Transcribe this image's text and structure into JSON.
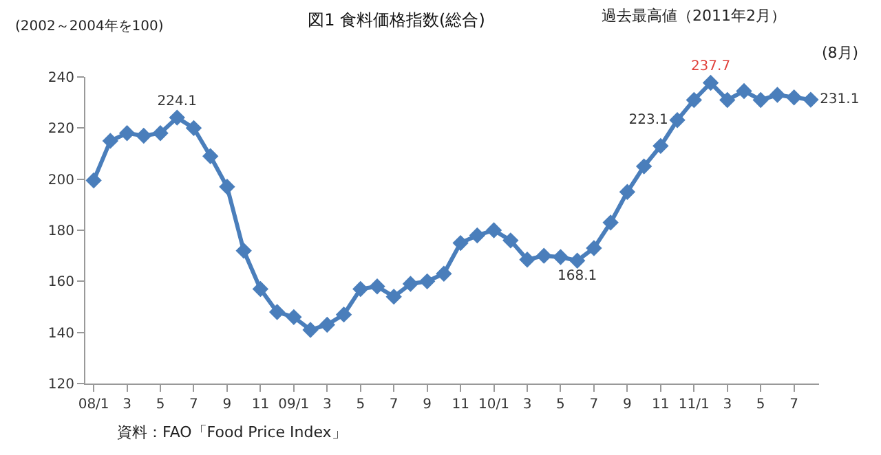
{
  "chart_data": {
    "type": "line",
    "title": "図1 食料価格指数(総合)",
    "ylabel": "(2002～2004年を100)",
    "categories": [
      "08/1",
      null,
      "3",
      null,
      "5",
      null,
      "7",
      null,
      "9",
      null,
      "11",
      null,
      "09/1",
      null,
      "3",
      null,
      "5",
      null,
      "7",
      null,
      "9",
      null,
      "11",
      null,
      "10/1",
      null,
      "3",
      null,
      "5",
      null,
      "7",
      null,
      "9",
      null,
      "11",
      null,
      "11/1",
      null,
      "3",
      null,
      "5",
      null,
      "7",
      null
    ],
    "series": [
      {
        "color": "#4a7ebb",
        "values": [
          199.5,
          215,
          218,
          217,
          218,
          224.1,
          220,
          209,
          197,
          172,
          157,
          148,
          146,
          141,
          143,
          147,
          157,
          158,
          154,
          159,
          160,
          163,
          175,
          178,
          180,
          176,
          168.5,
          170,
          169.5,
          168.1,
          173,
          183,
          195,
          205,
          213,
          223.1,
          231,
          237.7,
          231,
          234.5,
          231,
          233,
          232,
          231.1
        ],
        "value_labels": [
          null,
          null,
          null,
          null,
          null,
          "224.1",
          null,
          null,
          null,
          null,
          null,
          null,
          null,
          null,
          null,
          null,
          null,
          null,
          null,
          null,
          null,
          null,
          null,
          null,
          null,
          null,
          null,
          null,
          null,
          "168.1",
          null,
          null,
          null,
          null,
          null,
          "223.1",
          null,
          "237.7",
          null,
          null,
          null,
          null,
          null,
          "231.1"
        ]
      }
    ],
    "ylim": [
      120,
      240
    ],
    "yticks": [
      120,
      140,
      160,
      180,
      200,
      220,
      240
    ],
    "grid": false,
    "marker": "diamond",
    "line_style": "solid",
    "annotations": [
      "過去最高値（2011年2月）",
      "(8月)",
      "資料：FAO「Food Price Index」"
    ]
  }
}
